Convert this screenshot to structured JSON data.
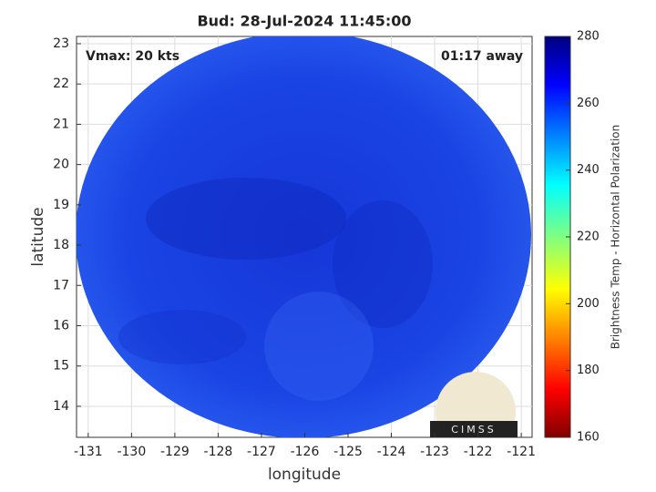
{
  "chart_data": {
    "type": "map",
    "title": "Bud: 28-Jul-2024 11:45:00",
    "annotations": [
      "Vmax: 20 kts",
      "01:17 away"
    ],
    "xlabel": "longitude",
    "ylabel": "latitude",
    "xlim": [
      -131.27,
      -120.75
    ],
    "ylim": [
      13.23,
      23.18
    ],
    "xticks": [
      -131,
      -130,
      -129,
      -128,
      -127,
      -126,
      -125,
      -124,
      -123,
      -122,
      -121
    ],
    "yticks": [
      14,
      15,
      16,
      17,
      18,
      19,
      20,
      21,
      22,
      23
    ],
    "grid": true,
    "colorbar": {
      "label": "Brightness Temp - Horizontal Polarization",
      "lim": [
        160,
        280
      ],
      "ticks": [
        160,
        180,
        200,
        220,
        240,
        260,
        280
      ]
    },
    "logo": "CIMSS"
  }
}
